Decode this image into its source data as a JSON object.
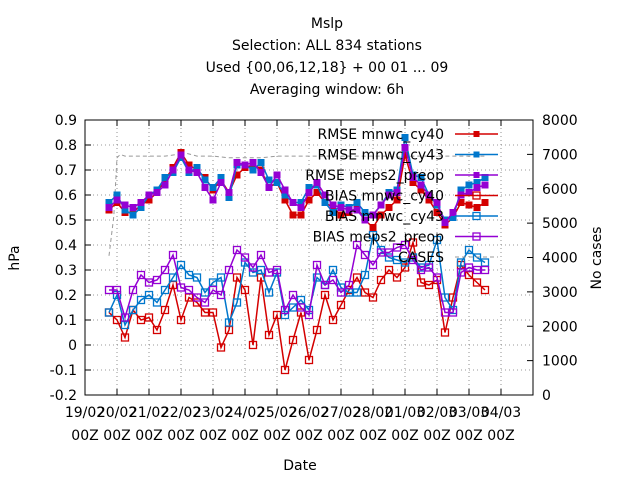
{
  "chart_data": {
    "type": "line",
    "title_lines": [
      "Mslp",
      "Selection: ALL    834 stations",
      "Used {00,06,12,18} + 00 01 ... 09",
      "Averaging window:  6h"
    ],
    "xlabel": "Date",
    "ylabel": "hPa",
    "y2label": "No cases",
    "ylim": [
      -0.2,
      0.9
    ],
    "y2lim": [
      0,
      8000
    ],
    "xlim": [
      0,
      14
    ],
    "grid": true,
    "legend_position": "top-right",
    "x_ticks": [
      {
        "pos": 0,
        "line1": "19/02",
        "line2": "00Z"
      },
      {
        "pos": 1,
        "line1": "20/02",
        "line2": "00Z"
      },
      {
        "pos": 2,
        "line1": "21/02",
        "line2": "00Z"
      },
      {
        "pos": 3,
        "line1": "22/02",
        "line2": "00Z"
      },
      {
        "pos": 4,
        "line1": "23/02",
        "line2": "00Z"
      },
      {
        "pos": 5,
        "line1": "24/02",
        "line2": "00Z"
      },
      {
        "pos": 6,
        "line1": "25/02",
        "line2": "00Z"
      },
      {
        "pos": 7,
        "line1": "26/02",
        "line2": "00Z"
      },
      {
        "pos": 8,
        "line1": "27/02",
        "line2": "00Z"
      },
      {
        "pos": 9,
        "line1": "28/02",
        "line2": "00Z"
      },
      {
        "pos": 10,
        "line1": "01/03",
        "line2": "00Z"
      },
      {
        "pos": 11,
        "line1": "02/03",
        "line2": "00Z"
      },
      {
        "pos": 12,
        "line1": "03/03",
        "line2": "00Z"
      },
      {
        "pos": 13,
        "line1": "04/03",
        "line2": "00Z"
      }
    ],
    "y_ticks": [
      "0.9",
      "0.8",
      "0.7",
      "0.6",
      "0.5",
      "0.4",
      "0.3",
      "0.2",
      "0.1",
      "0",
      "-0.1",
      "-0.2"
    ],
    "y2_ticks": [
      "8000",
      "7000",
      "6000",
      "5000",
      "4000",
      "3000",
      "2000",
      "1000",
      "0"
    ],
    "series": [
      {
        "name": "RMSE mnwc_cy40",
        "color": "#d40000",
        "marker": "filled-square",
        "axis": "y1",
        "x": [
          0.75,
          1,
          1.25,
          1.5,
          1.75,
          2,
          2.25,
          2.5,
          2.75,
          3,
          3.25,
          3.5,
          3.75,
          4,
          4.25,
          4.5,
          4.75,
          5,
          5.25,
          5.5,
          5.75,
          6,
          6.25,
          6.5,
          6.75,
          7,
          7.25,
          7.5,
          7.75,
          8,
          8.25,
          8.5,
          8.75,
          9,
          9.25,
          9.5,
          9.75,
          10,
          10.25,
          10.5,
          10.75,
          11,
          11.25,
          11.5,
          11.75,
          12,
          12.25,
          12.5
        ],
        "values": [
          0.54,
          0.57,
          0.53,
          0.53,
          0.56,
          0.58,
          0.61,
          0.66,
          0.71,
          0.77,
          0.72,
          0.7,
          0.67,
          0.62,
          0.66,
          0.61,
          0.68,
          0.71,
          0.72,
          0.7,
          0.63,
          0.65,
          0.58,
          0.52,
          0.52,
          0.58,
          0.61,
          0.57,
          0.55,
          0.52,
          0.53,
          0.55,
          0.5,
          0.47,
          0.52,
          0.55,
          0.58,
          0.76,
          0.65,
          0.62,
          0.58,
          0.53,
          0.48,
          0.51,
          0.57,
          0.56,
          0.55,
          0.57
        ]
      },
      {
        "name": "RMSE mnwc_cy43",
        "color": "#0077cc",
        "marker": "filled-square",
        "axis": "y1",
        "x": [
          0.75,
          1,
          1.25,
          1.5,
          1.75,
          2,
          2.25,
          2.5,
          2.75,
          3,
          3.25,
          3.5,
          3.75,
          4,
          4.25,
          4.5,
          4.75,
          5,
          5.25,
          5.5,
          5.75,
          6,
          6.25,
          6.5,
          6.75,
          7,
          7.25,
          7.5,
          7.75,
          8,
          8.25,
          8.5,
          8.75,
          9,
          9.25,
          9.5,
          9.75,
          10,
          10.25,
          10.5,
          10.75,
          11,
          11.25,
          11.5,
          11.75,
          12,
          12.25,
          12.5
        ],
        "values": [
          0.57,
          0.6,
          0.54,
          0.52,
          0.55,
          0.6,
          0.62,
          0.67,
          0.69,
          0.75,
          0.69,
          0.71,
          0.66,
          0.63,
          0.67,
          0.59,
          0.72,
          0.72,
          0.7,
          0.73,
          0.66,
          0.65,
          0.6,
          0.57,
          0.57,
          0.63,
          0.64,
          0.57,
          0.53,
          0.56,
          0.55,
          0.57,
          0.53,
          0.52,
          0.56,
          0.61,
          0.62,
          0.83,
          0.68,
          0.67,
          0.6,
          0.56,
          0.5,
          0.51,
          0.62,
          0.64,
          0.65,
          0.67
        ]
      },
      {
        "name": "RMSE meps2_preop",
        "color": "#9400d3",
        "marker": "filled-square",
        "axis": "y1",
        "x": [
          0.75,
          1,
          1.25,
          1.5,
          1.75,
          2,
          2.25,
          2.5,
          2.75,
          3,
          3.25,
          3.5,
          3.75,
          4,
          4.25,
          4.5,
          4.75,
          5,
          5.25,
          5.5,
          5.75,
          6,
          6.25,
          6.5,
          6.75,
          7,
          7.25,
          7.5,
          7.75,
          8,
          8.25,
          8.5,
          8.75,
          9,
          9.25,
          9.5,
          9.75,
          10,
          10.25,
          10.5,
          10.75,
          11,
          11.25,
          11.5,
          11.75,
          12,
          12.25,
          12.5
        ],
        "values": [
          0.55,
          0.58,
          0.56,
          0.55,
          0.57,
          0.6,
          0.61,
          0.64,
          0.7,
          0.76,
          0.7,
          0.69,
          0.63,
          0.58,
          0.65,
          0.61,
          0.73,
          0.72,
          0.73,
          0.69,
          0.63,
          0.68,
          0.62,
          0.57,
          0.55,
          0.61,
          0.65,
          0.6,
          0.56,
          0.55,
          0.54,
          0.54,
          0.5,
          0.52,
          0.56,
          0.6,
          0.61,
          0.79,
          0.67,
          0.64,
          0.6,
          0.57,
          0.49,
          0.53,
          0.6,
          0.61,
          0.63,
          0.64
        ]
      },
      {
        "name": "BIAS mnwc_cy40",
        "color": "#d40000",
        "marker": "open-square",
        "axis": "y1",
        "x": [
          0.75,
          1,
          1.25,
          1.5,
          1.75,
          2,
          2.25,
          2.5,
          2.75,
          3,
          3.25,
          3.5,
          3.75,
          4,
          4.25,
          4.5,
          4.75,
          5,
          5.25,
          5.5,
          5.75,
          6,
          6.25,
          6.5,
          6.75,
          7,
          7.25,
          7.5,
          7.75,
          8,
          8.25,
          8.5,
          8.75,
          9,
          9.25,
          9.5,
          9.75,
          10,
          10.25,
          10.5,
          10.75,
          11,
          11.25,
          11.5,
          11.75,
          12,
          12.25,
          12.5
        ],
        "values": [
          0.13,
          0.1,
          0.03,
          0.14,
          0.1,
          0.11,
          0.06,
          0.14,
          0.24,
          0.1,
          0.19,
          0.17,
          0.13,
          0.13,
          -0.01,
          0.06,
          0.27,
          0.22,
          0.0,
          0.27,
          0.04,
          0.12,
          -0.1,
          0.02,
          0.13,
          -0.06,
          0.06,
          0.2,
          0.1,
          0.16,
          0.22,
          0.27,
          0.21,
          0.19,
          0.26,
          0.3,
          0.27,
          0.31,
          0.41,
          0.25,
          0.24,
          0.26,
          0.05,
          0.19,
          0.32,
          0.28,
          0.25,
          0.22
        ]
      },
      {
        "name": "BIAS mnwc_cy43",
        "color": "#0077cc",
        "marker": "open-square",
        "axis": "y1",
        "x": [
          0.75,
          1,
          1.25,
          1.5,
          1.75,
          2,
          2.25,
          2.5,
          2.75,
          3,
          3.25,
          3.5,
          3.75,
          4,
          4.25,
          4.5,
          4.75,
          5,
          5.25,
          5.5,
          5.75,
          6,
          6.25,
          6.5,
          6.75,
          7,
          7.25,
          7.5,
          7.75,
          8,
          8.25,
          8.5,
          8.75,
          9,
          9.25,
          9.5,
          9.75,
          10,
          10.25,
          10.5,
          10.75,
          11,
          11.25,
          11.5,
          11.75,
          12,
          12.25,
          12.5
        ],
        "values": [
          0.13,
          0.2,
          0.08,
          0.14,
          0.18,
          0.2,
          0.17,
          0.22,
          0.27,
          0.32,
          0.28,
          0.27,
          0.21,
          0.25,
          0.27,
          0.09,
          0.17,
          0.33,
          0.29,
          0.3,
          0.21,
          0.29,
          0.12,
          0.15,
          0.18,
          0.14,
          0.27,
          0.24,
          0.3,
          0.23,
          0.21,
          0.21,
          0.28,
          0.44,
          0.38,
          0.35,
          0.34,
          0.33,
          0.35,
          0.31,
          0.32,
          0.42,
          0.19,
          0.14,
          0.33,
          0.38,
          0.35,
          0.33
        ]
      },
      {
        "name": "BIAS meps2_preop",
        "color": "#9400d3",
        "marker": "open-square",
        "axis": "y1",
        "x": [
          0.75,
          1,
          1.25,
          1.5,
          1.75,
          2,
          2.25,
          2.5,
          2.75,
          3,
          3.25,
          3.5,
          3.75,
          4,
          4.25,
          4.5,
          4.75,
          5,
          5.25,
          5.5,
          5.75,
          6,
          6.25,
          6.5,
          6.75,
          7,
          7.25,
          7.5,
          7.75,
          8,
          8.25,
          8.5,
          8.75,
          9,
          9.25,
          9.5,
          9.75,
          10,
          10.25,
          10.5,
          10.75,
          11,
          11.25,
          11.5,
          11.75,
          12,
          12.25,
          12.5
        ],
        "values": [
          0.22,
          0.22,
          0.11,
          0.22,
          0.28,
          0.25,
          0.26,
          0.3,
          0.36,
          0.23,
          0.22,
          0.19,
          0.17,
          0.22,
          0.2,
          0.3,
          0.38,
          0.35,
          0.31,
          0.36,
          0.29,
          0.3,
          0.14,
          0.2,
          0.15,
          0.12,
          0.32,
          0.24,
          0.26,
          0.21,
          0.24,
          0.4,
          0.36,
          0.32,
          0.37,
          0.37,
          0.39,
          0.4,
          0.34,
          0.3,
          0.31,
          0.27,
          0.13,
          0.13,
          0.29,
          0.31,
          0.3,
          0.3
        ]
      },
      {
        "name": "CASES",
        "color": "#999999",
        "marker": "none",
        "dashed": true,
        "axis": "y2",
        "x": [
          0.75,
          0.9,
          1,
          1.1,
          1.25,
          1.5,
          2,
          2.5,
          2.9,
          3,
          3.1,
          3.5,
          4,
          4.5,
          5,
          5.5,
          6,
          6.5,
          7,
          7.5,
          8,
          8.5,
          9,
          9.5,
          10,
          10.2,
          10.5,
          11,
          11.5,
          11.75,
          12,
          12.25,
          12.5
        ],
        "values": [
          4050,
          5200,
          6900,
          7000,
          6950,
          6950,
          6950,
          6950,
          7000,
          7150,
          7050,
          6950,
          6950,
          6900,
          6900,
          6900,
          6950,
          6950,
          6950,
          6950,
          6950,
          6950,
          6950,
          6950,
          6900,
          6950,
          6950,
          6950,
          6950,
          6950,
          6950,
          6950,
          6950
        ]
      }
    ]
  }
}
